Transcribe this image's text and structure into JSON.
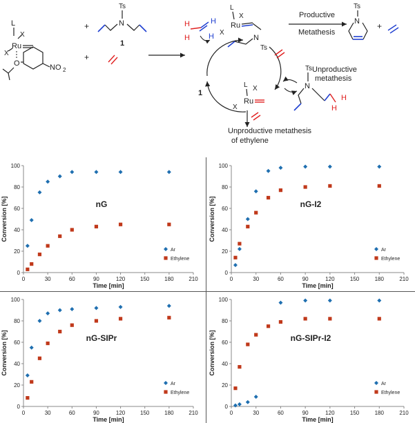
{
  "scheme": {
    "compound_label": "1",
    "cycle_label": "1",
    "productive_label": "Productive",
    "metathesis_label": "Metathesis",
    "unproductive_label_1": "Unproductive",
    "unproductive_label_2": "metathesis",
    "ethylene_label_1": "Unproductive metathesis",
    "ethylene_label_2": "of ethylene",
    "atom_ru": "Ru",
    "atom_l": "L",
    "atom_x": "X",
    "atom_n": "N",
    "atom_ts": "Ts",
    "atom_o": "O",
    "atom_h": "H",
    "group_no2": "NO",
    "group_no2_sub": "2",
    "plus": "+",
    "colors": {
      "blue": "#1f3fd0",
      "red": "#e02020",
      "black": "#222222"
    }
  },
  "chart_data": [
    {
      "type": "scatter",
      "title": "nG",
      "xlabel": "Time [min]",
      "ylabel": "Conversion [%]",
      "xlim": [
        0,
        210
      ],
      "ylim": [
        0,
        100
      ],
      "xticks": [
        0,
        30,
        60,
        90,
        120,
        150,
        180,
        210
      ],
      "yticks": [
        0,
        20,
        40,
        60,
        80,
        100
      ],
      "legend": "bottom-right",
      "series": [
        {
          "name": "Ar",
          "color": "#1f6fb0",
          "marker": "diamond",
          "x": [
            5,
            10,
            20,
            30,
            45,
            60,
            90,
            120,
            180
          ],
          "y": [
            25,
            49,
            75,
            85,
            90,
            94,
            94,
            94,
            94
          ]
        },
        {
          "name": "Ethylene",
          "color": "#c0391b",
          "marker": "square",
          "x": [
            5,
            10,
            20,
            30,
            45,
            60,
            90,
            120,
            180
          ],
          "y": [
            3,
            8,
            17,
            25,
            34,
            40,
            43,
            45,
            45
          ]
        }
      ]
    },
    {
      "type": "scatter",
      "title": "nG-I2",
      "xlabel": "Time [min]",
      "ylabel": "Conversion [%]",
      "xlim": [
        0,
        210
      ],
      "ylim": [
        0,
        100
      ],
      "xticks": [
        0,
        30,
        60,
        90,
        120,
        150,
        180,
        210
      ],
      "yticks": [
        0,
        20,
        40,
        60,
        80,
        100
      ],
      "legend": "bottom-right",
      "series": [
        {
          "name": "Ar",
          "color": "#1f6fb0",
          "marker": "diamond",
          "x": [
            5,
            10,
            20,
            30,
            45,
            60,
            90,
            120,
            180
          ],
          "y": [
            7,
            22,
            50,
            76,
            95,
            98,
            99,
            99,
            99
          ]
        },
        {
          "name": "Ethylene",
          "color": "#c0391b",
          "marker": "square",
          "x": [
            5,
            10,
            20,
            30,
            45,
            60,
            90,
            120,
            180
          ],
          "y": [
            14,
            27,
            43,
            56,
            70,
            77,
            80,
            81,
            81
          ]
        }
      ]
    },
    {
      "type": "scatter",
      "title": "nG-SIPr",
      "xlabel": "Time [min]",
      "ylabel": "Conversion [%]",
      "xlim": [
        0,
        210
      ],
      "ylim": [
        0,
        100
      ],
      "xticks": [
        0,
        30,
        60,
        90,
        120,
        150,
        180,
        210
      ],
      "yticks": [
        0,
        20,
        40,
        60,
        80,
        100
      ],
      "legend": "bottom-right",
      "series": [
        {
          "name": "Ar",
          "color": "#1f6fb0",
          "marker": "diamond",
          "x": [
            5,
            10,
            20,
            30,
            45,
            60,
            90,
            120,
            180
          ],
          "y": [
            29,
            55,
            80,
            87,
            90,
            91,
            92,
            93,
            94
          ]
        },
        {
          "name": "Ethylene",
          "color": "#c0391b",
          "marker": "square",
          "x": [
            5,
            10,
            20,
            30,
            45,
            60,
            90,
            120,
            180
          ],
          "y": [
            8,
            23,
            45,
            59,
            70,
            76,
            80,
            82,
            83
          ]
        }
      ]
    },
    {
      "type": "scatter",
      "title": "nG-SIPr-I2",
      "xlabel": "Time [min]",
      "ylabel": "Conversion [%]",
      "xlim": [
        0,
        210
      ],
      "ylim": [
        0,
        100
      ],
      "xticks": [
        0,
        30,
        60,
        90,
        120,
        150,
        180,
        210
      ],
      "yticks": [
        0,
        20,
        40,
        60,
        80,
        100
      ],
      "legend": "bottom-right",
      "series": [
        {
          "name": "Ar",
          "color": "#1f6fb0",
          "marker": "diamond",
          "x": [
            5,
            10,
            20,
            30,
            60,
            90,
            120,
            180
          ],
          "y": [
            1,
            2,
            4,
            9,
            97,
            99,
            99,
            99
          ]
        },
        {
          "name": "Ethylene",
          "color": "#c0391b",
          "marker": "square",
          "x": [
            5,
            10,
            20,
            30,
            45,
            60,
            90,
            120,
            180
          ],
          "y": [
            17,
            37,
            58,
            67,
            75,
            79,
            82,
            82,
            82
          ]
        }
      ]
    }
  ]
}
